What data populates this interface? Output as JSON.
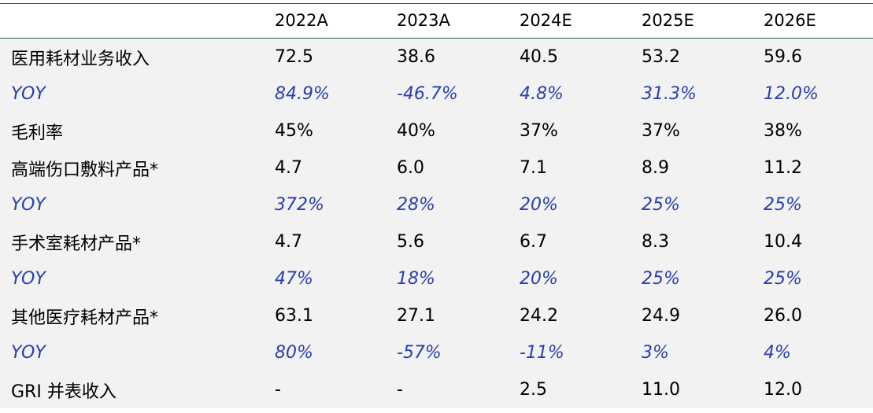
{
  "header": {
    "label": "",
    "years": [
      "2022A",
      "2023A",
      "2024E",
      "2025E",
      "2026E"
    ]
  },
  "rows": [
    {
      "label": "医用耗材业务收入",
      "values": [
        "72.5",
        "38.6",
        "40.5",
        "53.2",
        "59.6"
      ]
    },
    {
      "label": "YOY",
      "values": [
        "84.9%",
        "-46.7%",
        "4.8%",
        "31.3%",
        "12.0%"
      ]
    },
    {
      "label": "毛利率",
      "values": [
        "45%",
        "40%",
        "37%",
        "37%",
        "38%"
      ]
    },
    {
      "label": "高端伤口敷料产品*",
      "values": [
        "4.7",
        "6.0",
        "7.1",
        "8.9",
        "11.2"
      ]
    },
    {
      "label": "YOY",
      "values": [
        "372%",
        "28%",
        "20%",
        "25%",
        "25%"
      ]
    },
    {
      "label": "手术室耗材产品*",
      "values": [
        "4.7",
        "5.6",
        "6.7",
        "8.3",
        "10.4"
      ]
    },
    {
      "label": "YOY",
      "values": [
        "47%",
        "18%",
        "20%",
        "25%",
        "25%"
      ]
    },
    {
      "label": "其他医疗耗材产品*",
      "values": [
        "63.1",
        "27.1",
        "24.2",
        "24.9",
        "26.0"
      ]
    },
    {
      "label": "YOY",
      "values": [
        "80%",
        "-57%",
        "-11%",
        "3%",
        "4%"
      ]
    },
    {
      "label": "GRI 并表收入",
      "values": [
        "-",
        "-",
        "2.5",
        "11.0",
        "12.0"
      ]
    }
  ],
  "colors": {
    "yoy_text": "#2b3fa8",
    "row_background": "#f2f2f2",
    "rule": "#1f5b4a"
  }
}
